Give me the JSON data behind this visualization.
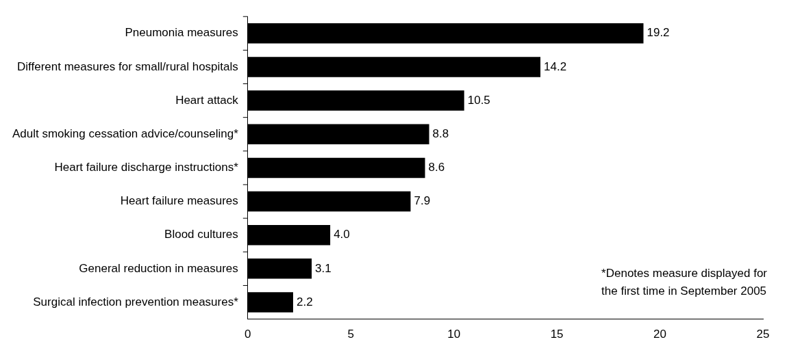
{
  "chart_data": {
    "type": "bar",
    "orientation": "horizontal",
    "categories": [
      "Pneumonia measures",
      "Different measures for small/rural hospitals",
      "Heart attack",
      "Adult smoking cessation advice/counseling*",
      "Heart failure discharge instructions*",
      "Heart failure measures",
      "Blood cultures",
      "General reduction in measures",
      "Surgical infection prevention measures*"
    ],
    "values": [
      19.2,
      14.2,
      10.5,
      8.8,
      8.6,
      7.9,
      4.0,
      3.1,
      2.2
    ],
    "value_labels": [
      "19.2",
      "14.2",
      "10.5",
      "8.8",
      "8.6",
      "7.9",
      "4.0",
      "3.1",
      "2.2"
    ],
    "color": "#000000",
    "xlim": [
      0,
      25
    ],
    "xticks": [
      0,
      5,
      10,
      15,
      20,
      25
    ],
    "grid": false,
    "legend": false,
    "annotations": [
      "*Denotes measure displayed for\nthe first time in September 2005"
    ]
  }
}
